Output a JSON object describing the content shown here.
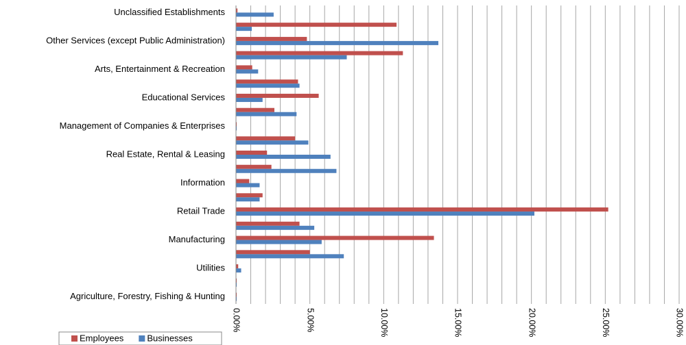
{
  "chart_data": {
    "type": "hbar",
    "categories": [
      "Unclassified Establishments",
      null,
      "Other Services (except Public Administration)",
      null,
      "Arts, Entertainment & Recreation",
      null,
      "Educational Services",
      null,
      "Management of Companies & Enterprises",
      null,
      "Real Estate, Rental & Leasing",
      null,
      "Information",
      null,
      "Retail Trade",
      null,
      "Manufacturing",
      null,
      "Utilities",
      null,
      "Agriculture, Forestry, Fishing & Hunting"
    ],
    "series": [
      {
        "name": "Employees",
        "color": "#c0504d",
        "values": [
          0.1,
          10.87,
          4.8,
          11.3,
          1.1,
          4.2,
          5.6,
          2.6,
          0.05,
          4.0,
          2.1,
          2.4,
          0.9,
          1.8,
          25.2,
          4.3,
          13.4,
          5.0,
          0.15,
          0.05,
          0.05
        ]
      },
      {
        "name": "Businesses",
        "color": "#4f81bd",
        "values": [
          2.55,
          1.07,
          13.7,
          7.5,
          1.5,
          4.3,
          1.8,
          4.1,
          0.05,
          4.9,
          6.4,
          6.8,
          1.6,
          1.6,
          20.2,
          5.3,
          5.8,
          7.3,
          0.35,
          0.05,
          0.05
        ]
      }
    ],
    "xlim": [
      0,
      30
    ],
    "xticks": [
      {
        "value": 0,
        "label": "0.00%"
      },
      {
        "value": 5,
        "label": "5.00%"
      },
      {
        "value": 10,
        "label": "10.00%"
      },
      {
        "value": 15,
        "label": "15.00%"
      },
      {
        "value": 20,
        "label": "20.00%"
      },
      {
        "value": 25,
        "label": "25.00%"
      },
      {
        "value": 30,
        "label": "30.00%"
      }
    ],
    "minor_xticks": [
      1,
      2,
      3,
      4,
      6,
      7,
      8,
      9,
      11,
      12,
      13,
      14,
      16,
      17,
      18,
      19,
      21,
      22,
      23,
      24,
      26,
      27,
      28,
      29
    ],
    "grid": true,
    "legend": "bottom-left"
  }
}
